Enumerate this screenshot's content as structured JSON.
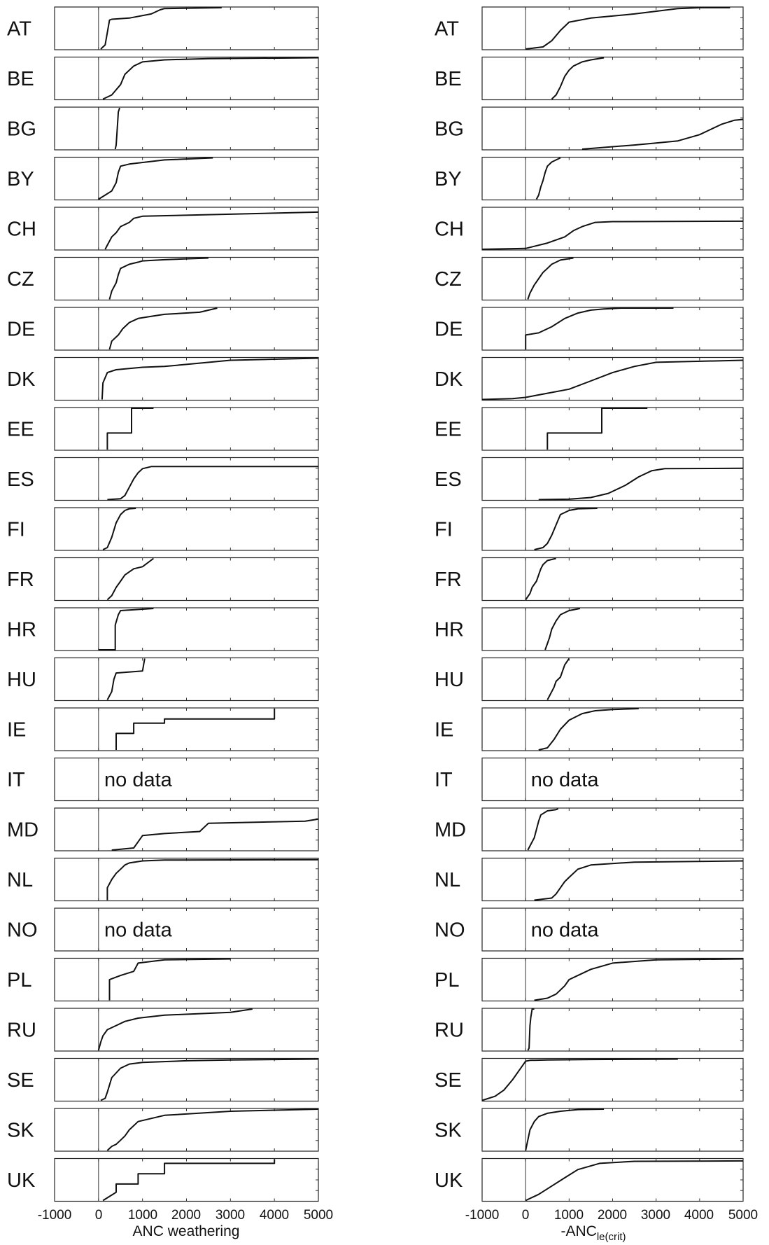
{
  "columns": [
    {
      "xlabel": "ANC weathering",
      "xlabel_sub": "",
      "xlim": [
        -1000,
        5000
      ],
      "ticks": [
        "-1000",
        "0",
        "1000",
        "2000",
        "3000",
        "4000",
        "5000"
      ]
    },
    {
      "xlabel": "-ANC",
      "xlabel_sub": "le(crit)",
      "xlim": [
        -1000,
        5000
      ],
      "ticks": [
        "-1000",
        "0",
        "1000",
        "2000",
        "3000",
        "4000",
        "5000"
      ]
    }
  ],
  "chart_data": [
    {
      "type": "line",
      "xlabel": "ANC weathering",
      "xlim": [
        -1000,
        5000
      ],
      "ylim": [
        0,
        1
      ],
      "grid": false,
      "panels": [
        {
          "name": "AT",
          "x": [
            50,
            150,
            250,
            300,
            700,
            1200,
            1400,
            1500,
            2800
          ],
          "y": [
            0,
            0.1,
            0.7,
            0.72,
            0.75,
            0.85,
            0.95,
            0.98,
            1.0
          ]
        },
        {
          "name": "BE",
          "x": [
            100,
            300,
            500,
            600,
            800,
            1000,
            1500,
            2500,
            5000
          ],
          "y": [
            0,
            0.1,
            0.35,
            0.6,
            0.8,
            0.9,
            0.95,
            0.98,
            1.0
          ]
        },
        {
          "name": "BG",
          "x": [
            380,
            400,
            420,
            450,
            480
          ],
          "y": [
            0,
            0.1,
            0.4,
            0.9,
            1.0
          ]
        },
        {
          "name": "BY",
          "x": [
            0,
            150,
            300,
            400,
            450,
            500,
            700,
            1500,
            2600
          ],
          "y": [
            0,
            0.1,
            0.2,
            0.4,
            0.65,
            0.8,
            0.85,
            0.95,
            1.0
          ]
        },
        {
          "name": "CH",
          "x": [
            150,
            200,
            300,
            400,
            500,
            700,
            800,
            1000,
            3000,
            5000
          ],
          "y": [
            0,
            0.1,
            0.3,
            0.4,
            0.55,
            0.65,
            0.75,
            0.8,
            0.85,
            0.9
          ]
        },
        {
          "name": "CZ",
          "x": [
            250,
            300,
            400,
            450,
            500,
            700,
            900,
            1000,
            1500,
            2500
          ],
          "y": [
            0,
            0.2,
            0.4,
            0.6,
            0.75,
            0.85,
            0.9,
            0.93,
            0.96,
            1.0
          ]
        },
        {
          "name": "DE",
          "x": [
            250,
            300,
            450,
            550,
            700,
            900,
            1200,
            1500,
            2300,
            2700
          ],
          "y": [
            0,
            0.2,
            0.35,
            0.5,
            0.65,
            0.75,
            0.8,
            0.85,
            0.9,
            1.0
          ]
        },
        {
          "name": "DK",
          "x": [
            80,
            100,
            200,
            400,
            700,
            1000,
            1500,
            2000,
            3000,
            5000
          ],
          "y": [
            0,
            0.4,
            0.65,
            0.72,
            0.75,
            0.78,
            0.8,
            0.85,
            0.95,
            1.0
          ]
        },
        {
          "name": "EE",
          "x": [
            200,
            200,
            750,
            750,
            1250
          ],
          "y": [
            0,
            0.4,
            0.4,
            1.0,
            1.0
          ]
        },
        {
          "name": "ES",
          "x": [
            200,
            500,
            600,
            700,
            800,
            900,
            1000,
            1200,
            5000
          ],
          "y": [
            0,
            0.02,
            0.1,
            0.3,
            0.5,
            0.65,
            0.75,
            0.8,
            0.8
          ]
        },
        {
          "name": "FI",
          "x": [
            100,
            200,
            300,
            400,
            500,
            600,
            700,
            850
          ],
          "y": [
            0,
            0.05,
            0.3,
            0.65,
            0.85,
            0.95,
            0.99,
            1.0
          ]
        },
        {
          "name": "FR",
          "x": [
            200,
            300,
            400,
            500,
            600,
            800,
            1000,
            1250
          ],
          "y": [
            0,
            0.1,
            0.3,
            0.45,
            0.6,
            0.75,
            0.8,
            1.0
          ]
        },
        {
          "name": "HR",
          "x": [
            0,
            380,
            380,
            450,
            500,
            1250
          ],
          "y": [
            0,
            0,
            0.6,
            0.85,
            0.95,
            1.0
          ]
        },
        {
          "name": "HU",
          "x": [
            200,
            250,
            300,
            350,
            400,
            1000,
            1050
          ],
          "y": [
            0,
            0.1,
            0.2,
            0.5,
            0.65,
            0.7,
            1.0
          ]
        },
        {
          "name": "IE",
          "x": [
            400,
            400,
            800,
            800,
            1500,
            1500,
            4000,
            4000
          ],
          "y": [
            0,
            0.4,
            0.4,
            0.65,
            0.65,
            0.75,
            0.75,
            1.0
          ]
        },
        {
          "name": "IT",
          "nodata": true,
          "label": "no data"
        },
        {
          "name": "MD",
          "x": [
            300,
            800,
            900,
            1000,
            1500,
            2300,
            2500,
            4700,
            5000
          ],
          "y": [
            0,
            0.05,
            0.2,
            0.35,
            0.4,
            0.45,
            0.65,
            0.7,
            0.75
          ]
        },
        {
          "name": "NL",
          "x": [
            200,
            200,
            300,
            400,
            500,
            600,
            700,
            1000,
            1500,
            5000
          ],
          "y": [
            0,
            0.3,
            0.5,
            0.65,
            0.75,
            0.85,
            0.9,
            0.95,
            0.97,
            0.98
          ]
        },
        {
          "name": "NO",
          "nodata": true,
          "label": "no data"
        },
        {
          "name": "PL",
          "x": [
            250,
            250,
            500,
            800,
            900,
            1500,
            3000
          ],
          "y": [
            0,
            0.5,
            0.6,
            0.7,
            0.9,
            0.98,
            1.0
          ]
        },
        {
          "name": "RU",
          "x": [
            0,
            50,
            100,
            200,
            400,
            600,
            900,
            1500,
            3000,
            3500
          ],
          "y": [
            0,
            0.2,
            0.35,
            0.5,
            0.6,
            0.7,
            0.78,
            0.85,
            0.92,
            1.0
          ]
        },
        {
          "name": "SE",
          "x": [
            50,
            150,
            200,
            300,
            500,
            700,
            1000,
            2000,
            3000,
            5000
          ],
          "y": [
            0,
            0.05,
            0.2,
            0.55,
            0.78,
            0.88,
            0.92,
            0.96,
            0.98,
            1.0
          ]
        },
        {
          "name": "SK",
          "x": [
            200,
            300,
            400,
            500,
            600,
            700,
            900,
            1500,
            3000,
            5000
          ],
          "y": [
            0,
            0.1,
            0.15,
            0.25,
            0.35,
            0.5,
            0.7,
            0.85,
            0.95,
            1.0
          ]
        },
        {
          "name": "UK",
          "x": [
            100,
            250,
            400,
            400,
            900,
            900,
            1500,
            1500,
            4000,
            4000
          ],
          "y": [
            0,
            0.1,
            0.2,
            0.4,
            0.4,
            0.65,
            0.65,
            0.9,
            0.9,
            1.0
          ]
        }
      ]
    },
    {
      "type": "line",
      "xlabel": "-ANC le(crit)",
      "xlim": [
        -1000,
        5000
      ],
      "ylim": [
        0,
        1
      ],
      "grid": false,
      "panels": [
        {
          "name": "AT",
          "x": [
            0,
            400,
            600,
            800,
            1000,
            1500,
            2500,
            3500,
            4000,
            4700
          ],
          "y": [
            0,
            0.05,
            0.2,
            0.45,
            0.65,
            0.75,
            0.85,
            0.98,
            1.0,
            1.0
          ]
        },
        {
          "name": "BE",
          "x": [
            600,
            700,
            800,
            900,
            1000,
            1100,
            1300,
            1500,
            1800
          ],
          "y": [
            0,
            0.1,
            0.3,
            0.55,
            0.7,
            0.8,
            0.9,
            0.95,
            1.0
          ]
        },
        {
          "name": "BG",
          "x": [
            1300,
            2500,
            3000,
            3500,
            4000,
            4200,
            4500,
            4800,
            5000
          ],
          "y": [
            0,
            0.1,
            0.15,
            0.2,
            0.35,
            0.45,
            0.6,
            0.7,
            0.72
          ]
        },
        {
          "name": "BY",
          "x": [
            250,
            300,
            350,
            400,
            450,
            500,
            600,
            700,
            800
          ],
          "y": [
            0,
            0.1,
            0.3,
            0.45,
            0.65,
            0.8,
            0.9,
            0.95,
            1.0
          ]
        },
        {
          "name": "CH",
          "x": [
            -1000,
            0,
            500,
            900,
            1100,
            1300,
            1600,
            2000,
            5000
          ],
          "y": [
            0,
            0.02,
            0.15,
            0.3,
            0.45,
            0.55,
            0.65,
            0.67,
            0.68
          ]
        },
        {
          "name": "CZ",
          "x": [
            50,
            100,
            200,
            300,
            400,
            500,
            600,
            800,
            1100
          ],
          "y": [
            0,
            0.15,
            0.35,
            0.5,
            0.65,
            0.75,
            0.85,
            0.95,
            1.0
          ]
        },
        {
          "name": "DE",
          "x": [
            0,
            0,
            300,
            600,
            900,
            1200,
            1500,
            1800,
            2200,
            3400
          ],
          "y": [
            0,
            0.35,
            0.4,
            0.55,
            0.75,
            0.88,
            0.95,
            0.98,
            1.0,
            1.0
          ]
        },
        {
          "name": "DK",
          "x": [
            -1000,
            -300,
            0,
            500,
            1000,
            1500,
            2000,
            2500,
            3000,
            5000
          ],
          "y": [
            0,
            0.02,
            0.05,
            0.15,
            0.25,
            0.45,
            0.65,
            0.8,
            0.9,
            0.95
          ]
        },
        {
          "name": "EE",
          "x": [
            500,
            500,
            1750,
            1750,
            2800
          ],
          "y": [
            0,
            0.4,
            0.4,
            1.0,
            1.0
          ]
        },
        {
          "name": "ES",
          "x": [
            300,
            1000,
            1500,
            1900,
            2300,
            2600,
            2900,
            3200,
            5000
          ],
          "y": [
            0,
            0.01,
            0.05,
            0.15,
            0.35,
            0.55,
            0.7,
            0.75,
            0.76
          ]
        },
        {
          "name": "FI",
          "x": [
            200,
            400,
            500,
            600,
            700,
            800,
            1000,
            1200,
            1650
          ],
          "y": [
            0,
            0.05,
            0.15,
            0.35,
            0.6,
            0.85,
            0.95,
            0.99,
            1.0
          ]
        },
        {
          "name": "FR",
          "x": [
            0,
            100,
            150,
            250,
            300,
            350,
            400,
            500,
            700
          ],
          "y": [
            0,
            0.15,
            0.3,
            0.45,
            0.6,
            0.75,
            0.85,
            0.95,
            1.0
          ]
        },
        {
          "name": "HR",
          "x": [
            450,
            500,
            550,
            600,
            700,
            800,
            900,
            1000,
            1250
          ],
          "y": [
            0,
            0.15,
            0.3,
            0.5,
            0.7,
            0.85,
            0.9,
            0.95,
            1.0
          ]
        },
        {
          "name": "HU",
          "x": [
            500,
            550,
            600,
            650,
            700,
            800,
            850,
            900,
            1000
          ],
          "y": [
            0,
            0.1,
            0.2,
            0.3,
            0.45,
            0.55,
            0.7,
            0.85,
            1.0
          ]
        },
        {
          "name": "IE",
          "x": [
            300,
            500,
            650,
            800,
            1000,
            1300,
            1600,
            2000,
            2600
          ],
          "y": [
            0,
            0.05,
            0.25,
            0.5,
            0.72,
            0.88,
            0.95,
            0.98,
            1.0
          ]
        },
        {
          "name": "IT",
          "nodata": true,
          "label": "no data"
        },
        {
          "name": "MD",
          "x": [
            50,
            100,
            200,
            250,
            300,
            350,
            500,
            700,
            750
          ],
          "y": [
            0,
            0.1,
            0.3,
            0.5,
            0.7,
            0.85,
            0.95,
            0.98,
            1.0
          ]
        },
        {
          "name": "NL",
          "x": [
            200,
            600,
            700,
            800,
            900,
            1000,
            1200,
            1500,
            2500,
            5000
          ],
          "y": [
            0,
            0.05,
            0.15,
            0.3,
            0.45,
            0.55,
            0.75,
            0.85,
            0.92,
            0.95
          ]
        },
        {
          "name": "NO",
          "nodata": true,
          "label": "no data"
        },
        {
          "name": "PL",
          "x": [
            200,
            500,
            700,
            800,
            900,
            1000,
            1500,
            2000,
            3000,
            5000
          ],
          "y": [
            0,
            0.05,
            0.15,
            0.25,
            0.35,
            0.5,
            0.75,
            0.9,
            0.98,
            1.0
          ]
        },
        {
          "name": "RU",
          "x": [
            50,
            80,
            100,
            120,
            150,
            200
          ],
          "y": [
            0,
            0.05,
            0.6,
            0.8,
            1.0,
            1.0
          ]
        },
        {
          "name": "SE",
          "x": [
            -1000,
            -700,
            -500,
            -300,
            -100,
            0,
            100,
            500,
            1500,
            3500
          ],
          "y": [
            0,
            0.1,
            0.25,
            0.5,
            0.8,
            0.95,
            0.97,
            0.98,
            0.99,
            1.0
          ]
        },
        {
          "name": "SK",
          "x": [
            0,
            50,
            100,
            200,
            300,
            500,
            800,
            1200,
            1800
          ],
          "y": [
            0,
            0.25,
            0.5,
            0.7,
            0.82,
            0.9,
            0.95,
            0.99,
            1.0
          ]
        },
        {
          "name": "UK",
          "x": [
            0,
            100,
            300,
            600,
            900,
            1200,
            1700,
            2500,
            5000
          ],
          "y": [
            0,
            0.05,
            0.15,
            0.35,
            0.55,
            0.75,
            0.9,
            0.95,
            0.96
          ]
        }
      ]
    }
  ]
}
